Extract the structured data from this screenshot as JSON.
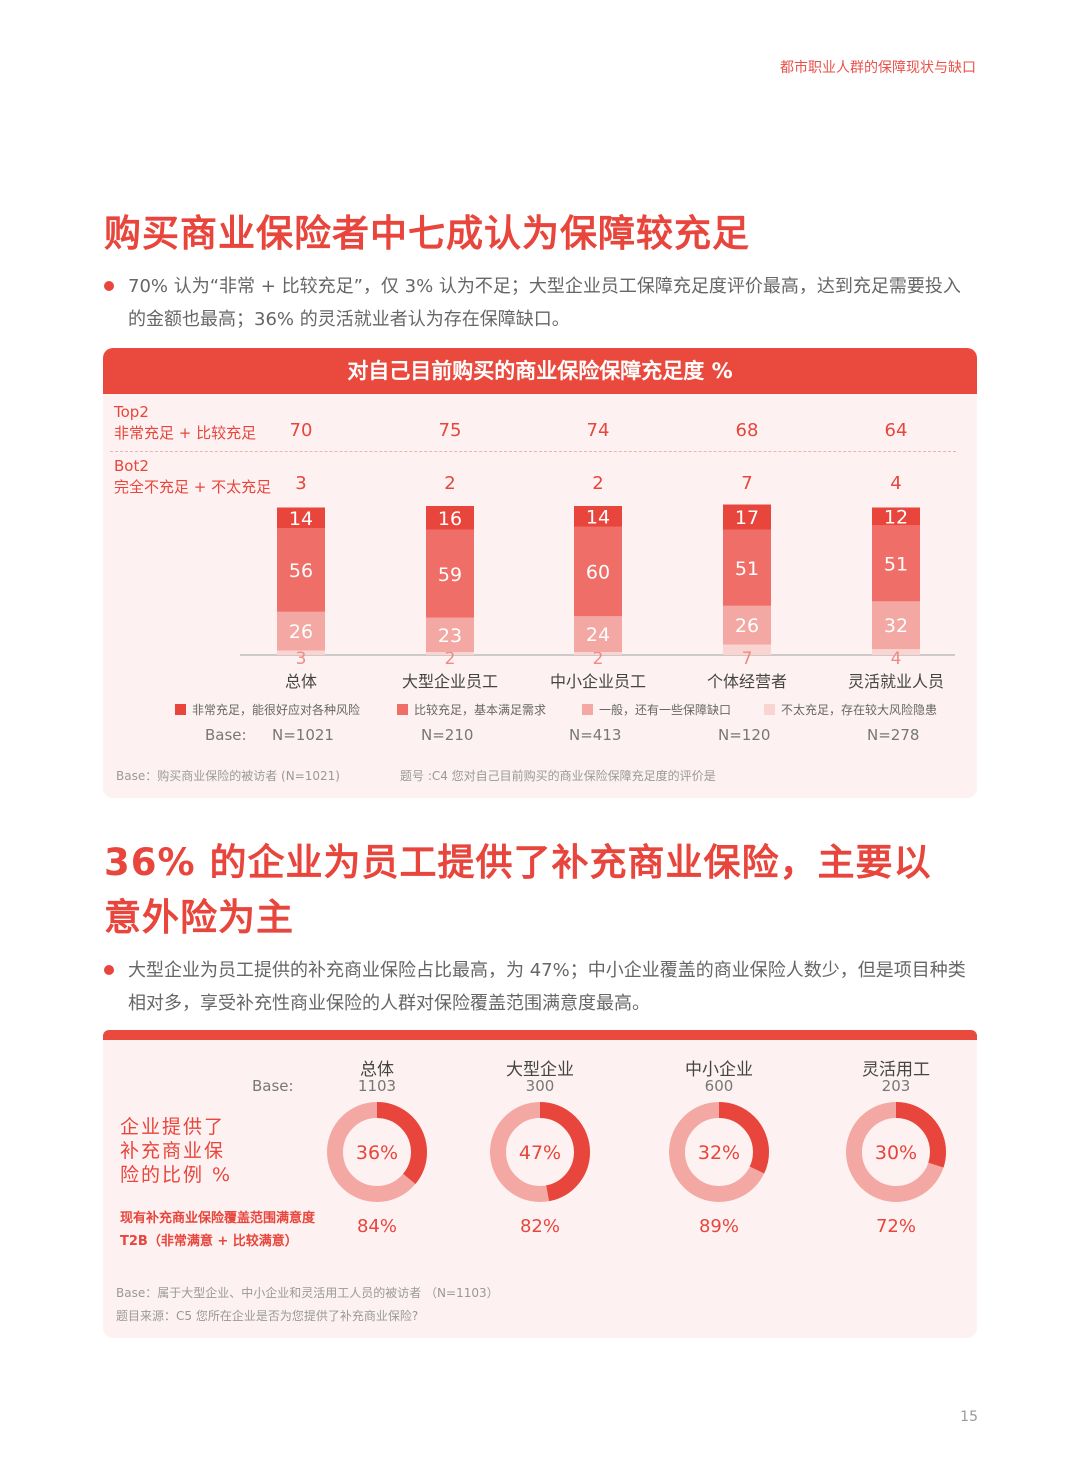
{
  "header": {
    "tag": "都市职业人群的保障现状与缺口"
  },
  "section1": {
    "title": "购买商业保险者中七成认为保障较充足",
    "bullet": "70% 认为“非常 + 比较充足”，仅 3% 认为不足；大型企业员工保障充足度评价最高，达到充足需要投入的金额也最高；36% 的灵活就业者认为存在保障缺口。",
    "panel_title": "对自己目前购买的商业保险保障充足度 %",
    "top2_label_1": "Top2",
    "top2_label_2": "非常充足 + 比较充足",
    "bot2_label_1": "Bot2",
    "bot2_label_2": "完全不充足 + 不太充足",
    "base_label": "Base:",
    "note_base": "Base：购买商业保险的被访者 (N=1021)",
    "note_question": "题号 :C4 您对自己目前购买的商业保险保障充足度的评价是"
  },
  "section2": {
    "title_line1": "36% 的企业为员工提供了补充商业保险，主要以",
    "title_line2": "意外险为主",
    "bullet": "大型企业为员工提供的补充商业保险占比最高，为 47%；中小企业覆盖的商业保险人数少，但是项目种类相对多，享受补充性商业保险的人群对保险覆盖范围满意度最高。",
    "base_label": "Base:",
    "row1_label": "企业提供了补充商业保险的比例 %",
    "row2_label_1": "现有补充商业保险覆盖范围满意度",
    "row2_label_2": "T2B（非常满意 + 比较满意）",
    "note_base": "Base：属于大型企业、中小企业和灵活用工人员的被访者 （N=1103）",
    "note_question": "题目来源：C5 您所在企业是否为您提供了补充商业保险?"
  },
  "page_number": "15",
  "colors": {
    "accent": "#e8453c",
    "s1": "#e8453c",
    "s2": "#ef6f68",
    "s3": "#f4a8a3",
    "s4": "#fad4d1",
    "donut_bg": "#f4a8a3"
  },
  "chart_data": [
    {
      "type": "bar",
      "stacked": true,
      "title": "对自己目前购买的商业保险保障充足度 %",
      "categories": [
        "总体",
        "大型企业员工",
        "中小企业员工",
        "个体经营者",
        "灵活就业人员"
      ],
      "bases": [
        "N=1021",
        "N=210",
        "N=413",
        "N=120",
        "N=278"
      ],
      "top2": [
        70,
        75,
        74,
        68,
        64
      ],
      "bot2": [
        3,
        2,
        2,
        7,
        4
      ],
      "series": [
        {
          "name": "非常充足，能很好应对各种风险",
          "color": "#e8453c",
          "values": [
            14,
            16,
            14,
            17,
            12
          ]
        },
        {
          "name": "比较充足，基本满足需求",
          "color": "#ef6f68",
          "values": [
            56,
            59,
            60,
            51,
            51
          ]
        },
        {
          "name": "一般，还有一些保障缺口",
          "color": "#f4a8a3",
          "values": [
            26,
            23,
            24,
            26,
            32
          ]
        },
        {
          "name": "不太充足，存在较大风险隐患",
          "color": "#fad4d1",
          "values": [
            3,
            2,
            2,
            7,
            4
          ]
        }
      ]
    },
    {
      "type": "pie",
      "donut": true,
      "categories": [
        "总体",
        "大型企业",
        "中小企业",
        "灵活用工"
      ],
      "bases": [
        "1103",
        "300",
        "600",
        "203"
      ],
      "values": [
        36,
        47,
        32,
        30
      ],
      "labels": [
        "36%",
        "47%",
        "32%",
        "30%"
      ],
      "satisfaction": [
        "84%",
        "82%",
        "89%",
        "72%"
      ]
    }
  ]
}
